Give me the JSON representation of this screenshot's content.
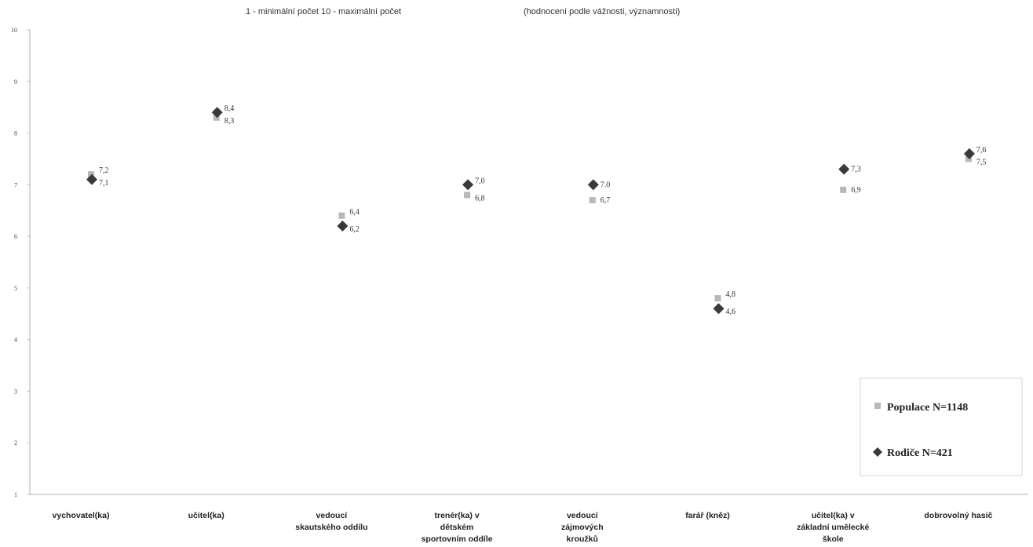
{
  "chart_data": {
    "type": "scatter",
    "title": "1 - minimální počet  10 - maximální počet",
    "subtitle": "(hodnocení podle vážnosti, významnosti)",
    "categories": [
      "vychovatel(ka)",
      "učitel(ka)",
      "vedoucí skautského oddílu",
      "trenér(ka) v dětském sportovním oddíle",
      "vedoucí zájmových kroužků",
      "farář (kněz)",
      "učitel(ka) v základní umělecké škole",
      "dobrovolný hasič"
    ],
    "category_lines": [
      [
        "vychovatel(ka)"
      ],
      [
        "učitel(ka)"
      ],
      [
        "vedoucí",
        "skautského oddílu"
      ],
      [
        "trenér(ka) v",
        "dětském",
        "sportovním oddíle"
      ],
      [
        "vedoucí",
        "zájmových",
        "kroužků"
      ],
      [
        "farář (kněz)"
      ],
      [
        "učitel(ka) v",
        "základní umělecké",
        "škole"
      ],
      [
        "dobrovolný hasič"
      ]
    ],
    "series": [
      {
        "name": "Populace N=1148",
        "marker": "square",
        "color": "#b8b8b8",
        "values": [
          7.2,
          8.3,
          6.4,
          6.8,
          6.7,
          4.8,
          6.9,
          7.5
        ],
        "labels": [
          "7,2",
          "8,3",
          "6,4",
          "6,8",
          "6,7",
          "4,8",
          "6,9",
          "7,5"
        ]
      },
      {
        "name": "Rodiče N=421",
        "marker": "diamond",
        "color": "#3a3a3a",
        "values": [
          7.1,
          8.4,
          6.2,
          7.0,
          7.0,
          4.6,
          7.3,
          7.6
        ],
        "labels": [
          "7,1",
          "8,4",
          "6,2",
          "7,0",
          "7.0",
          "4,6",
          "7,3",
          "7,6"
        ]
      }
    ],
    "ylim": [
      1,
      10
    ],
    "yticks": [
      "1",
      "2",
      "3",
      "4",
      "5",
      "6",
      "7",
      "8",
      "9",
      "10"
    ],
    "xlabel": "",
    "ylabel": "",
    "grid": false,
    "legend_position": "bottom-right"
  }
}
